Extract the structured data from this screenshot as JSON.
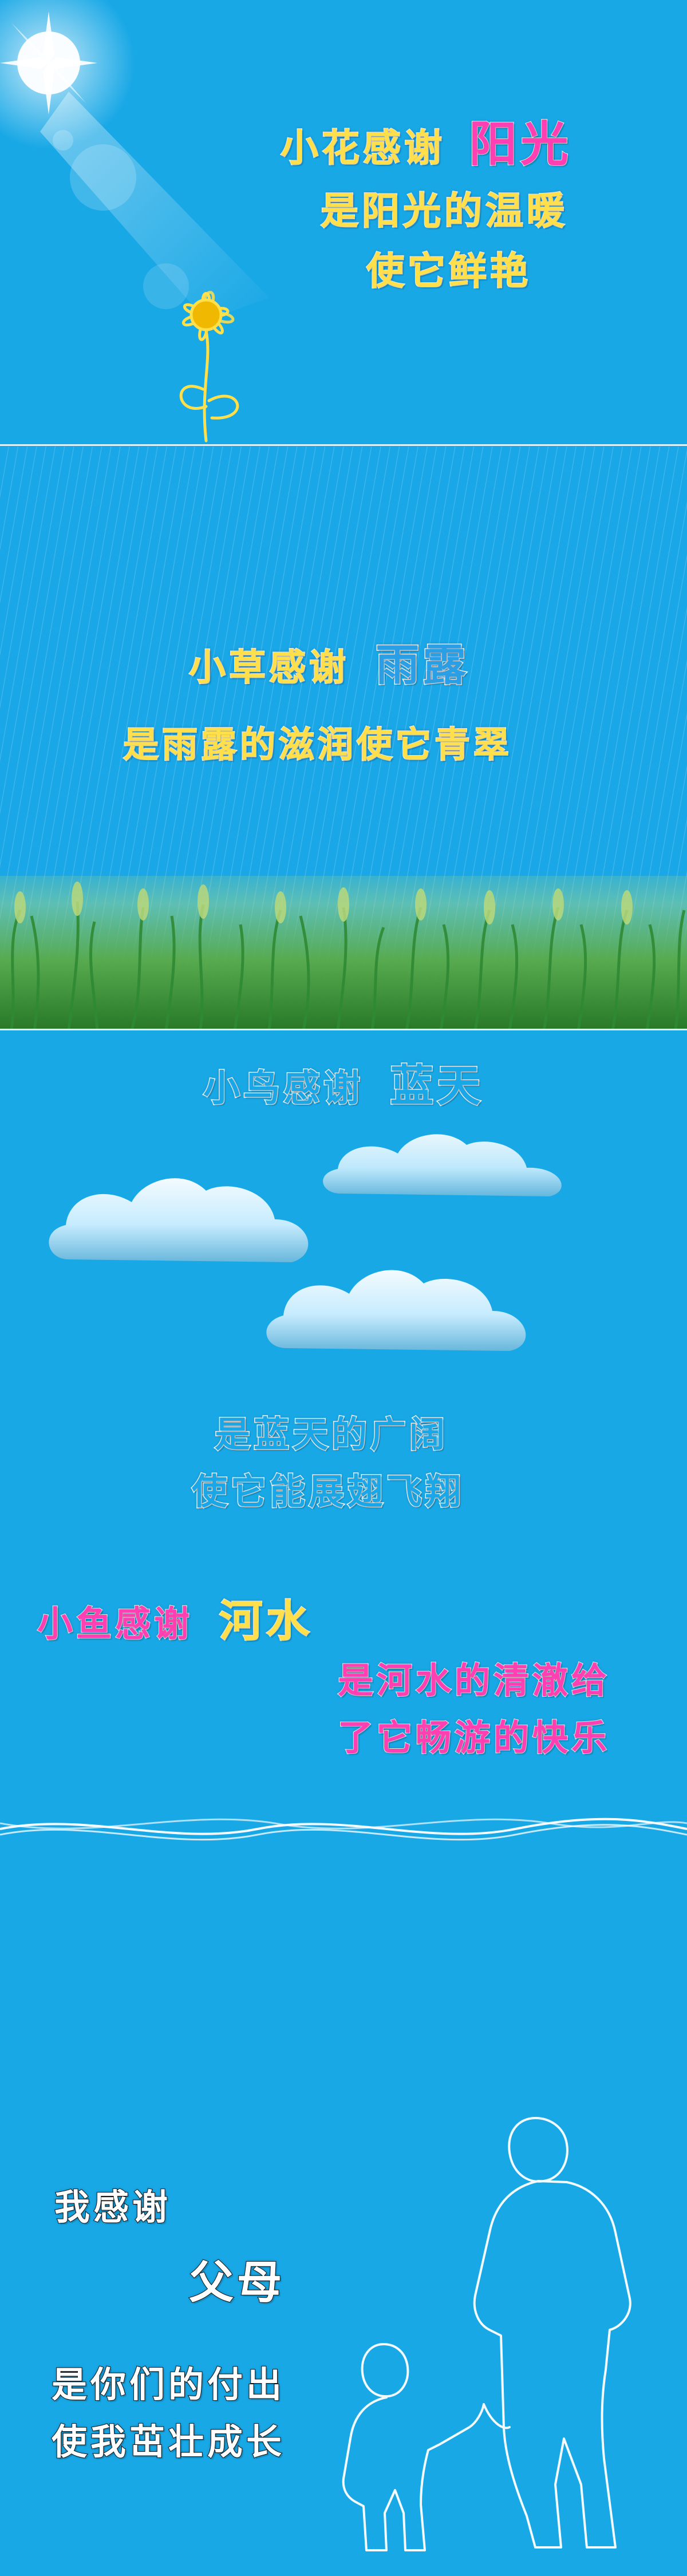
{
  "sections": {
    "sun": {
      "line1": "小花感谢",
      "line1_highlight": "阳光",
      "line2": "是阳光的温暖",
      "line3": "使它鲜艳"
    },
    "rain": {
      "line1": "小草感谢",
      "line1_highlight": "雨露",
      "line2": "是雨露的滋润使它青翠"
    },
    "sky": {
      "line1": "小鸟感谢",
      "line1_highlight": "蓝天",
      "line2": "是蓝天的广阔",
      "line3": "使它能展翅飞翔"
    },
    "river": {
      "line1": "小鱼感谢",
      "line1_highlight": "河水",
      "line2": "是河水的清澈给",
      "line3": "了它畅游的快乐"
    },
    "family": {
      "line1": "我感谢",
      "line1_highlight": "父母",
      "line2": "是你们的付出",
      "line3": "使我茁壮成长"
    }
  },
  "colors": {
    "background": "#19a8e6",
    "yellow_text": "#ffe04a",
    "magenta_text": "#ff3fb2",
    "white_text": "#ffffff"
  },
  "icons": {
    "sun": "sun-icon",
    "flower": "sunflower-icon",
    "cloud": "cloud-icon",
    "silhouette": "parent-child-silhouette"
  }
}
